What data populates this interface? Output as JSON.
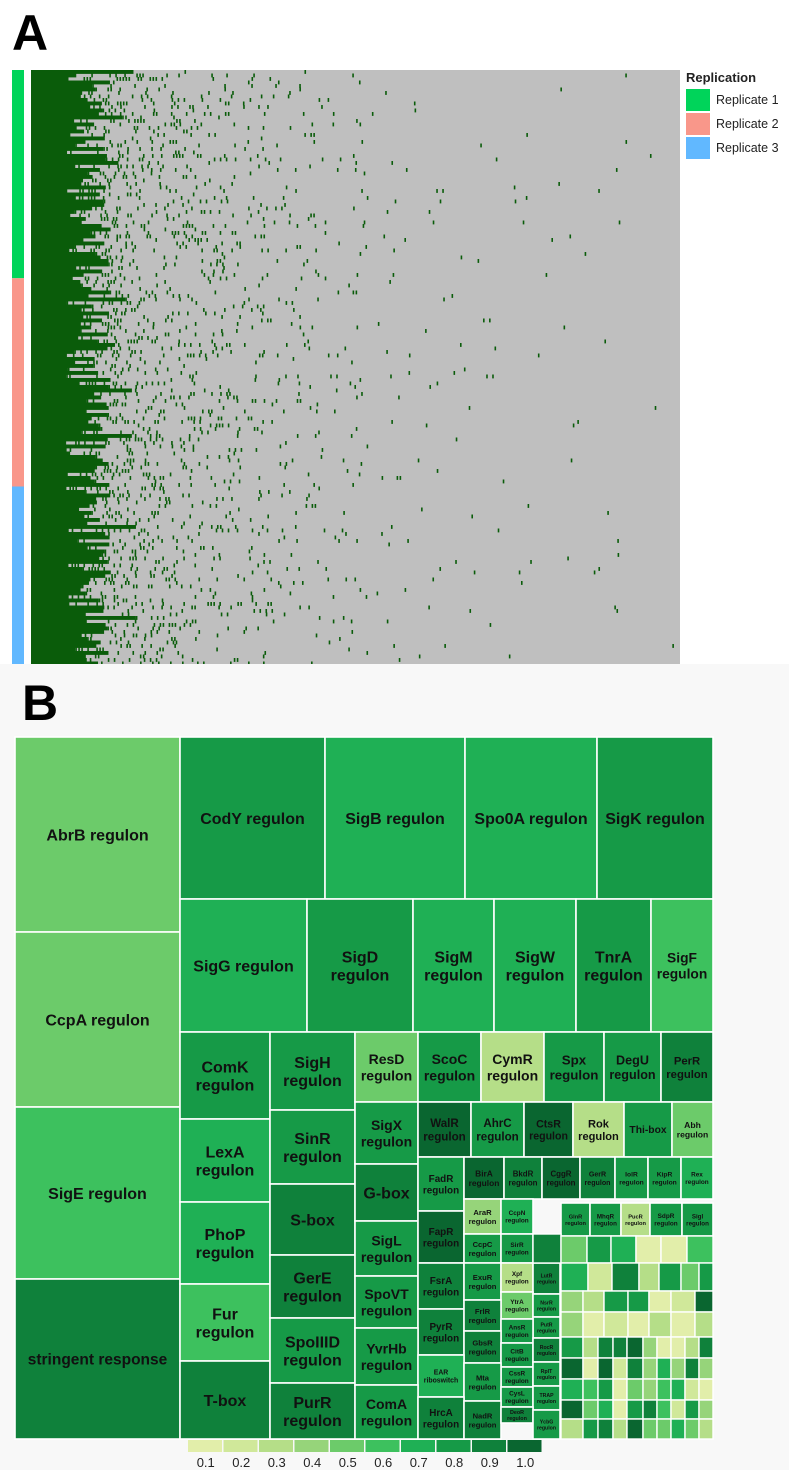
{
  "panels": {
    "a": "A",
    "b": "B"
  },
  "legend_a": {
    "title": "Replication",
    "items": [
      {
        "label": "Replicate 1",
        "color": "#00d45a"
      },
      {
        "label": "Replicate 2",
        "color": "#f9978a"
      },
      {
        "label": "Replicate 3",
        "color": "#61b8ff"
      }
    ]
  },
  "chart_data": [
    {
      "type": "heatmap",
      "title": "",
      "row_annotation": {
        "name": "Replication",
        "groups": [
          {
            "label": "Replicate 1",
            "color": "#00d45a",
            "fraction": 0.35
          },
          {
            "label": "Replicate 2",
            "color": "#f9978a",
            "fraction": 0.35
          },
          {
            "label": "Replicate 3",
            "color": "#61b8ff",
            "fraction": 0.3
          }
        ]
      },
      "present_color": "#0a5c0a",
      "absent_color": "#bfbfbf",
      "notes": "binary presence/absence matrix; columns sorted by frequency; presence decays from left to right"
    },
    {
      "type": "treemap",
      "title": "",
      "color_scale": {
        "ticks": [
          "0.1",
          "0.2",
          "0.3",
          "0.4",
          "0.5",
          "0.6",
          "0.7",
          "0.8",
          "0.9",
          "1.0"
        ],
        "colors": [
          "#e2eeaa",
          "#d0e89a",
          "#b5de88",
          "#96d47a",
          "#6ccb6a",
          "#3dc15e",
          "#1fb055",
          "#169a47",
          "#0f813b",
          "#0a6630"
        ]
      },
      "cells": [
        {
          "label": "AbrB regulon",
          "value": 0.45
        },
        {
          "label": "CcpA regulon",
          "value": 0.45
        },
        {
          "label": "SigE regulon",
          "value": 0.6
        },
        {
          "label": "stringent response",
          "value": 0.85
        },
        {
          "label": "CodY regulon",
          "value": 0.75
        },
        {
          "label": "SigB regulon",
          "value": 0.65
        },
        {
          "label": "Spo0A regulon",
          "value": 0.7
        },
        {
          "label": "SigK regulon",
          "value": 0.8
        },
        {
          "label": "SigG regulon",
          "value": 0.7
        },
        {
          "label": "SigD regulon",
          "value": 0.8
        },
        {
          "label": "SigM regulon",
          "value": 0.7
        },
        {
          "label": "SigW regulon",
          "value": 0.7
        },
        {
          "label": "TnrA regulon",
          "value": 0.75
        },
        {
          "label": "SigF regulon",
          "value": 0.55
        },
        {
          "label": "ComK regulon",
          "value": 0.75
        },
        {
          "label": "SigH regulon",
          "value": 0.8
        },
        {
          "label": "ResD regulon",
          "value": 0.45
        },
        {
          "label": "ScoC regulon",
          "value": 0.8
        },
        {
          "label": "CymR regulon",
          "value": 0.3
        },
        {
          "label": "Spx regulon",
          "value": 0.75
        },
        {
          "label": "DegU regulon",
          "value": 0.8
        },
        {
          "label": "PerR regulon",
          "value": 0.85
        },
        {
          "label": "LexA regulon",
          "value": 0.7
        },
        {
          "label": "SinR regulon",
          "value": 0.8
        },
        {
          "label": "SigX regulon",
          "value": 0.75
        },
        {
          "label": "WalR regulon",
          "value": 0.95
        },
        {
          "label": "AhrC regulon",
          "value": 0.8
        },
        {
          "label": "CtsR regulon",
          "value": 0.95
        },
        {
          "label": "Rok regulon",
          "value": 0.3
        },
        {
          "label": "Thi-box",
          "value": 0.75
        },
        {
          "label": "Abh regulon",
          "value": 0.5
        },
        {
          "label": "PhoP regulon",
          "value": 0.65
        },
        {
          "label": "S-box",
          "value": 0.9
        },
        {
          "label": "G-box",
          "value": 0.85
        },
        {
          "label": "FadR regulon",
          "value": 0.8
        },
        {
          "label": "BirA regulon",
          "value": 0.95
        },
        {
          "label": "BkdR regulon",
          "value": 0.9
        },
        {
          "label": "CggR regulon",
          "value": 0.95
        },
        {
          "label": "GerR regulon",
          "value": 0.9
        },
        {
          "label": "IolR regulon",
          "value": 0.8
        },
        {
          "label": "KipR regulon",
          "value": 0.75
        },
        {
          "label": "Rex regulon",
          "value": 0.7
        },
        {
          "label": "Fur regulon",
          "value": 0.6
        },
        {
          "label": "GerE regulon",
          "value": 0.9
        },
        {
          "label": "SigL regulon",
          "value": 0.75
        },
        {
          "label": "FapR regulon",
          "value": 0.95
        },
        {
          "label": "AraR regulon",
          "value": 0.4
        },
        {
          "label": "CcpN regulon",
          "value": 0.7
        },
        {
          "label": "GlnR regulon",
          "value": 0.75
        },
        {
          "label": "MhqR regulon",
          "value": 0.8
        },
        {
          "label": "PucR regulon",
          "value": 0.3
        },
        {
          "label": "SdpR regulon",
          "value": 0.8
        },
        {
          "label": "SigI regulon",
          "value": 0.75
        },
        {
          "label": "CcpC regulon",
          "value": 0.8
        },
        {
          "label": "SirR regulon",
          "value": 0.75
        },
        {
          "label": "T-box",
          "value": 0.85
        },
        {
          "label": "SpoIIID regulon",
          "value": 0.8
        },
        {
          "label": "SpoVT regulon",
          "value": 0.8
        },
        {
          "label": "FsrA regulon",
          "value": 0.85
        },
        {
          "label": "ExuR regulon",
          "value": 0.75
        },
        {
          "label": "Xpf regulon",
          "value": 0.3
        },
        {
          "label": "LutR regulon",
          "value": 0.85
        },
        {
          "label": "YtrA regulon",
          "value": 0.5
        },
        {
          "label": "NsrR regulon",
          "value": 0.75
        },
        {
          "label": "PutR regulon",
          "value": 0.8
        },
        {
          "label": "PyrR regulon",
          "value": 0.9
        },
        {
          "label": "FrlR regulon",
          "value": 0.85
        },
        {
          "label": "AnsR regulon",
          "value": 0.8
        },
        {
          "label": "PurR regulon",
          "value": 0.85
        },
        {
          "label": "YvrHb regulon",
          "value": 0.8
        },
        {
          "label": "GbsR regulon",
          "value": 0.9
        },
        {
          "label": "CitB regulon",
          "value": 0.75
        },
        {
          "label": "RocR regulon",
          "value": 0.85
        },
        {
          "label": "CssR regulon",
          "value": 0.8
        },
        {
          "label": "RplT regulon",
          "value": 0.8
        },
        {
          "label": "EAR riboswitch",
          "value": 0.7
        },
        {
          "label": "Mta regulon",
          "value": 0.8
        },
        {
          "label": "CysL regulon",
          "value": 0.8
        },
        {
          "label": "TRAP regulon",
          "value": 0.75
        },
        {
          "label": "ComA regulon",
          "value": 0.8
        },
        {
          "label": "HrcA regulon",
          "value": 0.85
        },
        {
          "label": "NadR regulon",
          "value": 0.85
        },
        {
          "label": "DeoR regulon",
          "value": 0.9
        },
        {
          "label": "YcbG regulon",
          "value": 0.8
        }
      ]
    }
  ]
}
